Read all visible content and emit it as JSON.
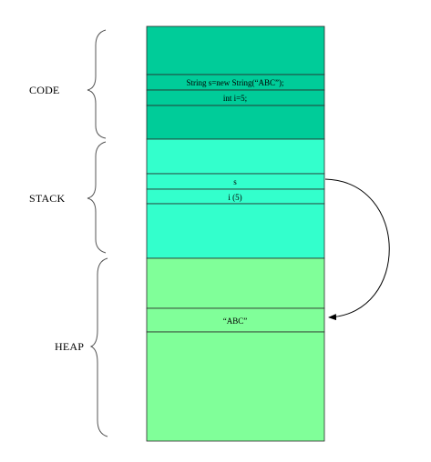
{
  "regions": [
    {
      "id": "code",
      "label": "CODE",
      "color": "#00cc99",
      "cells": [
        {
          "id": "code-line-1",
          "text": "String s=new String(“ABC”);"
        },
        {
          "id": "code-line-2",
          "text": "int i=5;"
        }
      ]
    },
    {
      "id": "stack",
      "label": "STACK",
      "color": "#33ffcc",
      "cells": [
        {
          "id": "stack-var-s",
          "text": "s"
        },
        {
          "id": "stack-var-i",
          "text": "i (5)"
        }
      ]
    },
    {
      "id": "heap",
      "label": "HEAP",
      "color": "#80ff99",
      "cells": [
        {
          "id": "heap-object-abc",
          "text": "“ABC”"
        }
      ]
    }
  ],
  "arrow": {
    "from": "stack-var-s",
    "to": "heap-object-abc",
    "color": "#000000"
  }
}
